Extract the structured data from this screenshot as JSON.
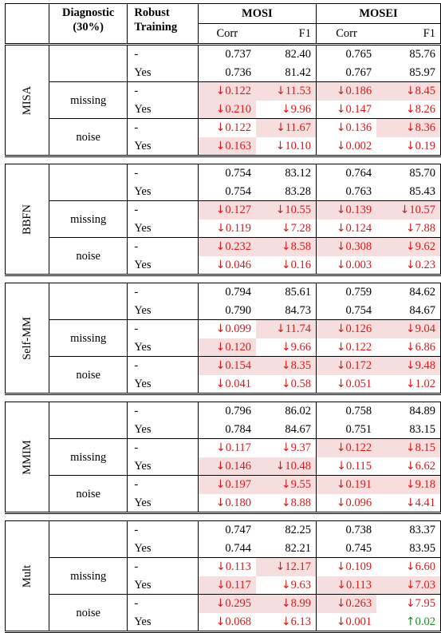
{
  "header": {
    "diagnostic": "Diagnostic",
    "diagnostic_pct": "(30%)",
    "robust": "Robust",
    "training": "Training",
    "mosi": "MOSI",
    "mosei": "MOSEI",
    "corr": "Corr",
    "f1": "F1"
  },
  "colors": {
    "decrease_text": "#d21a1a",
    "increase_text": "#1f8a1f",
    "highlight_bg": "#f7dede"
  },
  "icons": {
    "decrease": "down-arrow-icon",
    "increase": "up-arrow-icon"
  },
  "models": [
    {
      "name": "MISA",
      "rows": [
        {
          "diag": "",
          "robust": "-",
          "cells": [
            {
              "text": "0.737"
            },
            {
              "text": "82.40"
            },
            {
              "text": "0.765"
            },
            {
              "text": "85.76"
            }
          ]
        },
        {
          "diag": "",
          "robust": "Yes",
          "cells": [
            {
              "text": "0.736"
            },
            {
              "text": "81.42"
            },
            {
              "text": "0.767"
            },
            {
              "text": "85.97"
            }
          ]
        },
        {
          "diag": "missing",
          "robust": "-",
          "cells": [
            {
              "text": "0.122",
              "dir": "down",
              "hl": true
            },
            {
              "text": "11.53",
              "dir": "down",
              "hl": true
            },
            {
              "text": "0.186",
              "dir": "down",
              "hl": true
            },
            {
              "text": "8.45",
              "dir": "down",
              "hl": true
            }
          ]
        },
        {
          "diag": "",
          "robust": "Yes",
          "cells": [
            {
              "text": "0.210",
              "dir": "down",
              "hl": true
            },
            {
              "text": "9.96",
              "dir": "down"
            },
            {
              "text": "0.147",
              "dir": "down"
            },
            {
              "text": "8.26",
              "dir": "down"
            }
          ]
        },
        {
          "diag": "noise",
          "robust": "-",
          "cells": [
            {
              "text": "0.122",
              "dir": "down"
            },
            {
              "text": "11.67",
              "dir": "down",
              "hl": true
            },
            {
              "text": "0.136",
              "dir": "down"
            },
            {
              "text": "8.36",
              "dir": "down",
              "hl": true
            }
          ]
        },
        {
          "diag": "",
          "robust": "Yes",
          "cells": [
            {
              "text": "0.163",
              "dir": "down",
              "hl": true
            },
            {
              "text": "10.10",
              "dir": "down"
            },
            {
              "text": "0.002",
              "dir": "down"
            },
            {
              "text": "0.19",
              "dir": "down"
            }
          ]
        }
      ]
    },
    {
      "name": "BBFN",
      "rows": [
        {
          "diag": "",
          "robust": "-",
          "cells": [
            {
              "text": "0.754"
            },
            {
              "text": "83.12"
            },
            {
              "text": "0.764"
            },
            {
              "text": "85.70"
            }
          ]
        },
        {
          "diag": "",
          "robust": "Yes",
          "cells": [
            {
              "text": "0.754"
            },
            {
              "text": "83.28"
            },
            {
              "text": "0.763"
            },
            {
              "text": "85.43"
            }
          ]
        },
        {
          "diag": "missing",
          "robust": "-",
          "cells": [
            {
              "text": "0.127",
              "dir": "down",
              "hl": true
            },
            {
              "text": "10.55",
              "dir": "down",
              "hl": true
            },
            {
              "text": "0.139",
              "dir": "down",
              "hl": true
            },
            {
              "text": "10.57",
              "dir": "down",
              "hl": true
            }
          ]
        },
        {
          "diag": "",
          "robust": "Yes",
          "cells": [
            {
              "text": "0.119",
              "dir": "down"
            },
            {
              "text": "7.28",
              "dir": "down"
            },
            {
              "text": "0.124",
              "dir": "down"
            },
            {
              "text": "7.88",
              "dir": "down"
            }
          ]
        },
        {
          "diag": "noise",
          "robust": "-",
          "cells": [
            {
              "text": "0.232",
              "dir": "down",
              "hl": true
            },
            {
              "text": "8.58",
              "dir": "down",
              "hl": true
            },
            {
              "text": "0.308",
              "dir": "down",
              "hl": true
            },
            {
              "text": "9.62",
              "dir": "down",
              "hl": true
            }
          ]
        },
        {
          "diag": "",
          "robust": "Yes",
          "cells": [
            {
              "text": "0.046",
              "dir": "down"
            },
            {
              "text": "0.16",
              "dir": "down"
            },
            {
              "text": "0.003",
              "dir": "down"
            },
            {
              "text": "0.23",
              "dir": "down"
            }
          ]
        }
      ]
    },
    {
      "name": "Self-MM",
      "rows": [
        {
          "diag": "",
          "robust": "-",
          "cells": [
            {
              "text": "0.794"
            },
            {
              "text": "85.61"
            },
            {
              "text": "0.759"
            },
            {
              "text": "84.62"
            }
          ]
        },
        {
          "diag": "",
          "robust": "Yes",
          "cells": [
            {
              "text": "0.790"
            },
            {
              "text": "84.73"
            },
            {
              "text": "0.754"
            },
            {
              "text": "84.67"
            }
          ]
        },
        {
          "diag": "missing",
          "robust": "-",
          "cells": [
            {
              "text": "0.099",
              "dir": "down"
            },
            {
              "text": "11.74",
              "dir": "down",
              "hl": true
            },
            {
              "text": "0.126",
              "dir": "down",
              "hl": true
            },
            {
              "text": "9.04",
              "dir": "down",
              "hl": true
            }
          ]
        },
        {
          "diag": "",
          "robust": "Yes",
          "cells": [
            {
              "text": "0.120",
              "dir": "down",
              "hl": true
            },
            {
              "text": "9.66",
              "dir": "down"
            },
            {
              "text": "0.122",
              "dir": "down"
            },
            {
              "text": "6.86",
              "dir": "down"
            }
          ]
        },
        {
          "diag": "noise",
          "robust": "-",
          "cells": [
            {
              "text": "0.154",
              "dir": "down",
              "hl": true
            },
            {
              "text": "8.35",
              "dir": "down",
              "hl": true
            },
            {
              "text": "0.172",
              "dir": "down",
              "hl": true
            },
            {
              "text": "9.48",
              "dir": "down",
              "hl": true
            }
          ]
        },
        {
          "diag": "",
          "robust": "Yes",
          "cells": [
            {
              "text": "0.041",
              "dir": "down"
            },
            {
              "text": "0.58",
              "dir": "down"
            },
            {
              "text": "0.051",
              "dir": "down"
            },
            {
              "text": "1.02",
              "dir": "down"
            }
          ]
        }
      ]
    },
    {
      "name": "MMIM",
      "rows": [
        {
          "diag": "",
          "robust": "-",
          "cells": [
            {
              "text": "0.796"
            },
            {
              "text": "86.02"
            },
            {
              "text": "0.758"
            },
            {
              "text": "84.89"
            }
          ]
        },
        {
          "diag": "",
          "robust": "Yes",
          "cells": [
            {
              "text": "0.784"
            },
            {
              "text": "84.67"
            },
            {
              "text": "0.751"
            },
            {
              "text": "83.15"
            }
          ]
        },
        {
          "diag": "missing",
          "robust": "-",
          "cells": [
            {
              "text": "0.117",
              "dir": "down"
            },
            {
              "text": "9.37",
              "dir": "down"
            },
            {
              "text": "0.122",
              "dir": "down",
              "hl": true
            },
            {
              "text": "8.15",
              "dir": "down",
              "hl": true
            }
          ]
        },
        {
          "diag": "",
          "robust": "Yes",
          "cells": [
            {
              "text": "0.146",
              "dir": "down",
              "hl": true
            },
            {
              "text": "10.48",
              "dir": "down",
              "hl": true
            },
            {
              "text": "0.115",
              "dir": "down"
            },
            {
              "text": "6.62",
              "dir": "down"
            }
          ]
        },
        {
          "diag": "noise",
          "robust": "-",
          "cells": [
            {
              "text": "0.197",
              "dir": "down",
              "hl": true
            },
            {
              "text": "9.55",
              "dir": "down",
              "hl": true
            },
            {
              "text": "0.191",
              "dir": "down",
              "hl": true
            },
            {
              "text": "9.18",
              "dir": "down",
              "hl": true
            }
          ]
        },
        {
          "diag": "",
          "robust": "Yes",
          "cells": [
            {
              "text": "0.180",
              "dir": "down"
            },
            {
              "text": "8.88",
              "dir": "down"
            },
            {
              "text": "0.096",
              "dir": "down"
            },
            {
              "text": "4.41",
              "dir": "down"
            }
          ]
        }
      ]
    },
    {
      "name": "Mult",
      "rows": [
        {
          "diag": "",
          "robust": "-",
          "cells": [
            {
              "text": "0.747"
            },
            {
              "text": "82.25"
            },
            {
              "text": "0.738"
            },
            {
              "text": "83.37"
            }
          ]
        },
        {
          "diag": "",
          "robust": "Yes",
          "cells": [
            {
              "text": "0.744"
            },
            {
              "text": "82.21"
            },
            {
              "text": "0.745"
            },
            {
              "text": "83.95"
            }
          ]
        },
        {
          "diag": "missing",
          "robust": "-",
          "cells": [
            {
              "text": "0.113",
              "dir": "down"
            },
            {
              "text": "12.17",
              "dir": "down",
              "hl": true
            },
            {
              "text": "0.109",
              "dir": "down"
            },
            {
              "text": "6.60",
              "dir": "down"
            }
          ]
        },
        {
          "diag": "",
          "robust": "Yes",
          "cells": [
            {
              "text": "0.117",
              "dir": "down",
              "hl": true
            },
            {
              "text": "9.63",
              "dir": "down"
            },
            {
              "text": "0.113",
              "dir": "down",
              "hl": true
            },
            {
              "text": "7.03",
              "dir": "down",
              "hl": true
            }
          ]
        },
        {
          "diag": "noise",
          "robust": "-",
          "cells": [
            {
              "text": "0.295",
              "dir": "down",
              "hl": true
            },
            {
              "text": "8.99",
              "dir": "down",
              "hl": true
            },
            {
              "text": "0.263",
              "dir": "down",
              "hl": true
            },
            {
              "text": "7.95",
              "dir": "down"
            }
          ]
        },
        {
          "diag": "",
          "robust": "Yes",
          "cells": [
            {
              "text": "0.068",
              "dir": "down"
            },
            {
              "text": "6.13",
              "dir": "down"
            },
            {
              "text": "0.001",
              "dir": "down"
            },
            {
              "text": "0.02",
              "dir": "up"
            }
          ]
        }
      ]
    }
  ]
}
